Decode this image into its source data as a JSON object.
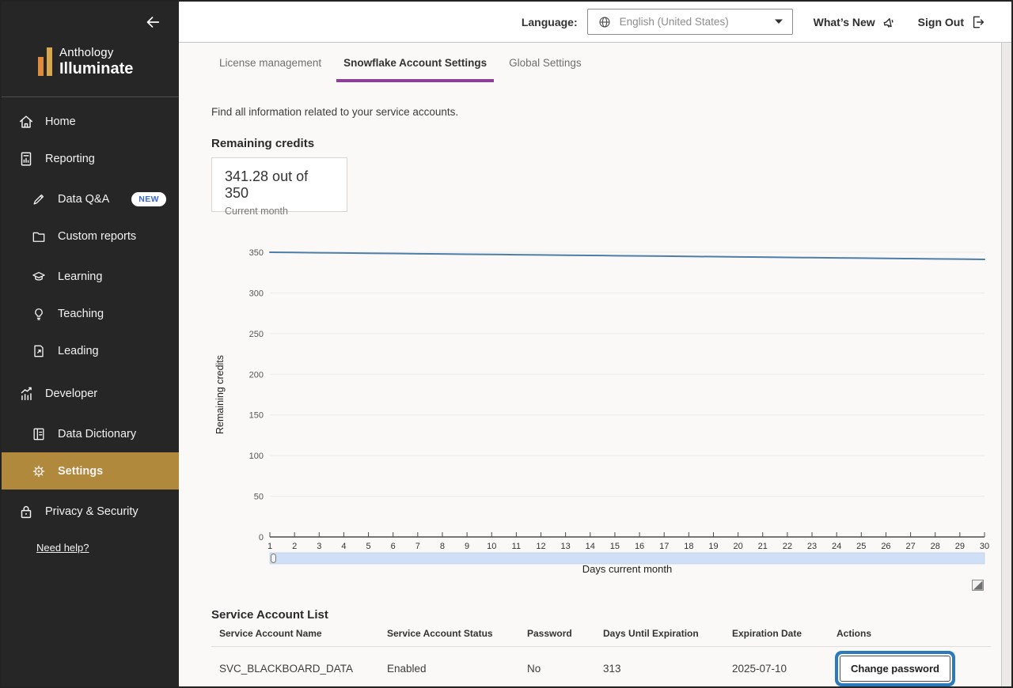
{
  "sidebar": {
    "brand": {
      "line1": "Anthology",
      "line2": "Illuminate"
    },
    "items": [
      {
        "label": "Home",
        "icon": "home-icon"
      },
      {
        "label": "Reporting",
        "icon": "report-doc-icon"
      },
      {
        "label": "Data Q&A",
        "icon": "data-qa-pen-icon",
        "badge": "NEW"
      },
      {
        "label": "Custom reports",
        "icon": "folder-icon"
      },
      {
        "label": "Learning",
        "icon": "graduation-cap-icon"
      },
      {
        "label": "Teaching",
        "icon": "lightbulb-icon"
      },
      {
        "label": "Leading",
        "icon": "page-arrow-icon"
      },
      {
        "label": "Developer",
        "icon": "bar-chart-icon"
      },
      {
        "label": "Data Dictionary",
        "icon": "book-grid-icon"
      },
      {
        "label": "Settings",
        "icon": "gear-icon",
        "active": true
      },
      {
        "label": "Privacy & Security",
        "icon": "padlock-icon"
      }
    ],
    "help_link": "Need help?"
  },
  "topbar": {
    "language_label": "Language:",
    "language_value": "English (United States)",
    "whats_new_label": "What’s New",
    "sign_out_label": "Sign Out"
  },
  "tabs": [
    {
      "label": "License management",
      "active": false
    },
    {
      "label": "Snowflake Account Settings",
      "active": true
    },
    {
      "label": "Global Settings",
      "active": false
    }
  ],
  "intro_text": "Find all information related to your service accounts.",
  "credits": {
    "heading": "Remaining credits",
    "value": "341.28 out of 350",
    "caption": "Current month"
  },
  "chart_data": {
    "type": "line",
    "title": "",
    "ylabel": "Remaining credits",
    "xlabel": "Days current month",
    "ylim": [
      0,
      350
    ],
    "ytick_step": 50,
    "grid": true,
    "legend": "none",
    "color": "#4d7ea8",
    "x": [
      1,
      2,
      3,
      4,
      5,
      6,
      7,
      8,
      9,
      10,
      11,
      12,
      13,
      14,
      15,
      16,
      17,
      18,
      19,
      20,
      21,
      22,
      23,
      24,
      25,
      26,
      27,
      28,
      29,
      30
    ],
    "values": [
      350,
      349.7,
      349.4,
      349.1,
      348.8,
      348.5,
      348.2,
      347.9,
      347.6,
      347.3,
      347.0,
      346.7,
      346.4,
      346.1,
      345.8,
      345.5,
      345.2,
      344.9,
      344.6,
      344.3,
      344.0,
      343.7,
      343.4,
      343.1,
      342.8,
      342.5,
      342.2,
      341.9,
      341.6,
      341.28
    ]
  },
  "service_accounts": {
    "heading": "Service Account List",
    "columns": [
      "Service Account Name",
      "Service Account Status",
      "Password",
      "Days Until Expiration",
      "Expiration Date",
      "Actions"
    ],
    "row": {
      "name": "SVC_BLACKBOARD_DATA",
      "status": "Enabled",
      "password": "No",
      "days_until_expiration": "313",
      "expiration_date": "2025-07-10"
    },
    "action_label": "Change password"
  },
  "colors": {
    "sidebar_bg": "#262626",
    "active_item_gold": "#b1893c",
    "tab_underline_purple": "#8e3f97",
    "chart_line_blue": "#4d7ea8",
    "slider_blue": "#cfdff5",
    "focus_ring_blue": "#2b7abe",
    "badge_text_blue": "#3a66d0"
  }
}
